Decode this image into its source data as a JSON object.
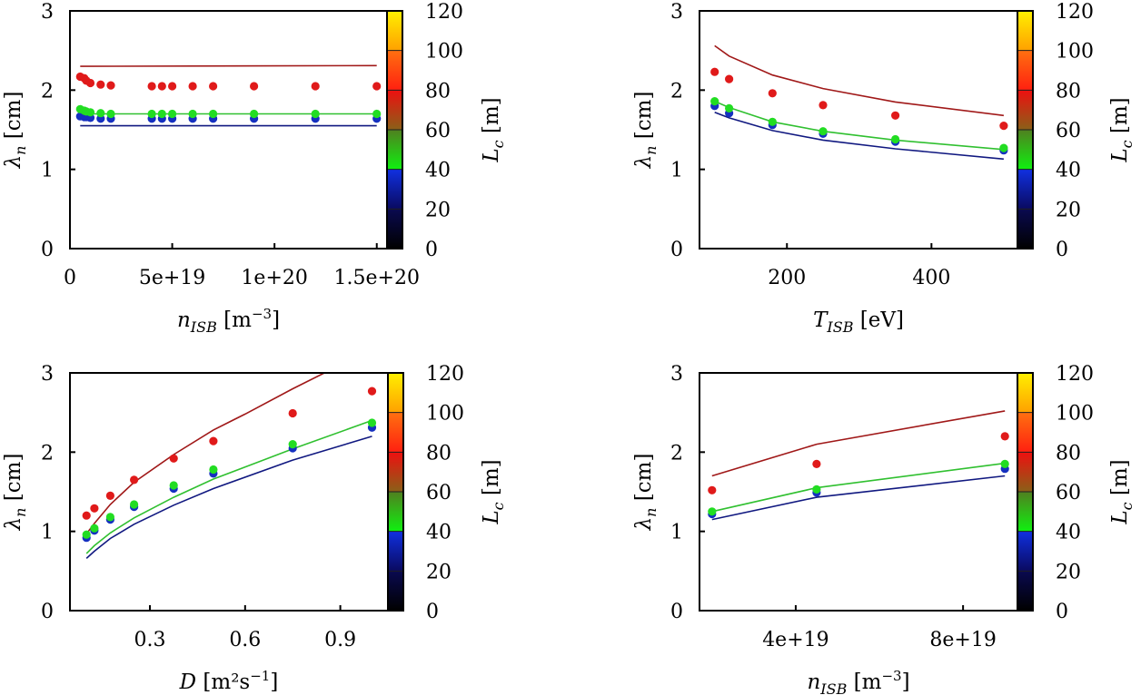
{
  "figure": {
    "y_axis_label": {
      "symbol": "λ",
      "subscript": "n",
      "unit": "[cm]"
    },
    "colorbar_label": {
      "symbol": "L",
      "subscript": "c",
      "unit": "[m]"
    },
    "colorbar": {
      "range": [
        0,
        120
      ],
      "ticks": [
        "0",
        "20",
        "40",
        "60",
        "80",
        "100",
        "120"
      ],
      "tick_values": [
        0,
        20,
        40,
        60,
        80,
        100,
        120
      ],
      "bands": [
        {
          "from": 0,
          "to": 20,
          "bottom": "#000000",
          "top": "#0a0a50"
        },
        {
          "from": 20,
          "to": 40,
          "bottom": "#0a0a60",
          "top": "#1030e0"
        },
        {
          "from": 40,
          "to": 60,
          "bottom": "#10f010",
          "top": "#508020"
        },
        {
          "from": 60,
          "to": 80,
          "bottom": "#8a6018",
          "top": "#ee1010"
        },
        {
          "from": 80,
          "to": 100,
          "bottom": "#ff2010",
          "top": "#ff7010"
        },
        {
          "from": 100,
          "to": 120,
          "bottom": "#ffa000",
          "top": "#fff000"
        }
      ]
    },
    "series_colors": {
      "red": "#e01a1a",
      "green": "#22dd22",
      "blue": "#1530c0",
      "red_line": "#a01818",
      "green_line": "#30c030",
      "blue_line": "#101880"
    }
  },
  "chart_data": [
    {
      "type": "scatter",
      "title": "",
      "xlabel": {
        "symbol": "n",
        "subscript": "ISB",
        "unit": "[m",
        "sup": "−3",
        "close": "]"
      },
      "ylabel": "λn [cm]",
      "xlim": [
        0,
        1.55e+20
      ],
      "ylim": [
        0,
        3
      ],
      "xticks": [
        0,
        5e+19,
        1e+20,
        1.5e+20
      ],
      "xtick_labels": [
        "0",
        "5e+19",
        "1e+20",
        "1.5e+20"
      ],
      "yticks": [
        0,
        1,
        2,
        3
      ],
      "ytick_labels": [
        "0",
        "1",
        "2",
        "3"
      ],
      "colorbar_label": "Lc [m]",
      "series": [
        {
          "name": "points-red",
          "kind": "points",
          "color": "red",
          "x": [
            5e+18,
            7e+18,
            8e+18,
            1e+19,
            1.5e+19,
            2e+19,
            4e+19,
            4.5e+19,
            5e+19,
            6e+19,
            7e+19,
            9e+19,
            1.2e+20,
            1.5e+20
          ],
          "y": [
            2.17,
            2.15,
            2.12,
            2.09,
            2.07,
            2.06,
            2.05,
            2.05,
            2.05,
            2.05,
            2.05,
            2.05,
            2.05,
            2.05
          ]
        },
        {
          "name": "points-green",
          "kind": "points",
          "color": "green",
          "x": [
            5e+18,
            7e+18,
            8e+18,
            1e+19,
            1.5e+19,
            2e+19,
            4e+19,
            4.5e+19,
            5e+19,
            6e+19,
            7e+19,
            9e+19,
            1.2e+20,
            1.5e+20
          ],
          "y": [
            1.76,
            1.74,
            1.73,
            1.72,
            1.71,
            1.7,
            1.7,
            1.7,
            1.7,
            1.7,
            1.7,
            1.7,
            1.7,
            1.7
          ]
        },
        {
          "name": "points-blue",
          "kind": "points",
          "color": "blue",
          "x": [
            5e+18,
            7e+18,
            8e+18,
            1e+19,
            1.5e+19,
            2e+19,
            4e+19,
            4.5e+19,
            5e+19,
            6e+19,
            7e+19,
            9e+19,
            1.2e+20,
            1.5e+20
          ],
          "y": [
            1.67,
            1.66,
            1.66,
            1.65,
            1.64,
            1.64,
            1.64,
            1.64,
            1.64,
            1.64,
            1.64,
            1.64,
            1.64,
            1.64
          ]
        },
        {
          "name": "line-red",
          "kind": "line",
          "color": "red_line",
          "x": [
            5e+18,
            1.5e+20
          ],
          "y": [
            2.3,
            2.31
          ]
        },
        {
          "name": "line-green",
          "kind": "line",
          "color": "green_line",
          "x": [
            5e+18,
            1.5e+20
          ],
          "y": [
            1.7,
            1.7
          ]
        },
        {
          "name": "line-blue",
          "kind": "line",
          "color": "blue_line",
          "x": [
            5e+18,
            1.5e+20
          ],
          "y": [
            1.55,
            1.55
          ]
        }
      ]
    },
    {
      "type": "scatter",
      "title": "",
      "xlabel": {
        "symbol": "T",
        "subscript": "ISB",
        "unit": "[eV]",
        "sup": "",
        "close": ""
      },
      "ylabel": "λn [cm]",
      "xlim": [
        79,
        519
      ],
      "ylim": [
        0,
        3
      ],
      "xticks": [
        200,
        400
      ],
      "xtick_labels": [
        "200",
        "400"
      ],
      "yticks": [
        0,
        1,
        2,
        3
      ],
      "ytick_labels": [
        "0",
        "1",
        "2",
        "3"
      ],
      "colorbar_label": "Lc [m]",
      "series": [
        {
          "name": "points-red",
          "kind": "points",
          "color": "red",
          "x": [
            100,
            120,
            180,
            250,
            350,
            500
          ],
          "y": [
            2.23,
            2.14,
            1.96,
            1.81,
            1.68,
            1.55
          ]
        },
        {
          "name": "points-green",
          "kind": "points",
          "color": "green",
          "x": [
            100,
            120,
            180,
            250,
            350,
            500
          ],
          "y": [
            1.86,
            1.77,
            1.6,
            1.48,
            1.38,
            1.27
          ]
        },
        {
          "name": "points-blue",
          "kind": "points",
          "color": "blue",
          "x": [
            100,
            120,
            180,
            250,
            350,
            500
          ],
          "y": [
            1.8,
            1.71,
            1.56,
            1.45,
            1.35,
            1.24
          ]
        },
        {
          "name": "line-red",
          "kind": "line",
          "color": "red_line",
          "x": [
            100,
            120,
            180,
            250,
            350,
            500
          ],
          "y": [
            2.56,
            2.43,
            2.19,
            2.02,
            1.85,
            1.68
          ]
        },
        {
          "name": "line-green",
          "kind": "line",
          "color": "green_line",
          "x": [
            100,
            120,
            180,
            250,
            350,
            500
          ],
          "y": [
            1.86,
            1.78,
            1.6,
            1.48,
            1.37,
            1.25
          ]
        },
        {
          "name": "line-blue",
          "kind": "line",
          "color": "blue_line",
          "x": [
            100,
            120,
            180,
            250,
            350,
            500
          ],
          "y": [
            1.72,
            1.65,
            1.49,
            1.37,
            1.26,
            1.13
          ]
        }
      ]
    },
    {
      "type": "scatter",
      "title": "",
      "xlabel": {
        "symbol": "D",
        "subscript": "",
        "unit": "[m²s",
        "sup": "−1",
        "close": "]"
      },
      "ylabel": "λn [cm]",
      "xlim": [
        0.048,
        1.05
      ],
      "ylim": [
        0,
        3
      ],
      "xticks": [
        0.3,
        0.6,
        0.9
      ],
      "xtick_labels": [
        "0.3",
        "0.6",
        "0.9"
      ],
      "yticks": [
        0,
        1,
        2,
        3
      ],
      "ytick_labels": [
        "0",
        "1",
        "2",
        "3"
      ],
      "colorbar_label": "Lc [m]",
      "series": [
        {
          "name": "points-red",
          "kind": "points",
          "color": "red",
          "x": [
            0.1,
            0.125,
            0.175,
            0.25,
            0.375,
            0.5,
            0.75,
            1.0
          ],
          "y": [
            1.2,
            1.29,
            1.45,
            1.65,
            1.92,
            2.14,
            2.49,
            2.77
          ]
        },
        {
          "name": "points-green",
          "kind": "points",
          "color": "green",
          "x": [
            0.1,
            0.125,
            0.175,
            0.25,
            0.375,
            0.5,
            0.75,
            1.0
          ],
          "y": [
            0.96,
            1.04,
            1.18,
            1.34,
            1.58,
            1.78,
            2.1,
            2.37
          ]
        },
        {
          "name": "points-blue",
          "kind": "points",
          "color": "blue",
          "x": [
            0.1,
            0.125,
            0.175,
            0.25,
            0.375,
            0.5,
            0.75,
            1.0
          ],
          "y": [
            0.92,
            1.01,
            1.15,
            1.31,
            1.54,
            1.73,
            2.05,
            2.31
          ]
        },
        {
          "name": "line-red",
          "kind": "line",
          "color": "red_line",
          "x": [
            0.1,
            0.125,
            0.175,
            0.25,
            0.375,
            0.5,
            0.6,
            0.75,
            0.85
          ],
          "y": [
            0.97,
            1.1,
            1.34,
            1.62,
            1.97,
            2.28,
            2.48,
            2.8,
            3.0
          ]
        },
        {
          "name": "line-green",
          "kind": "line",
          "color": "green_line",
          "x": [
            0.1,
            0.125,
            0.175,
            0.25,
            0.375,
            0.5,
            0.75,
            1.0
          ],
          "y": [
            0.72,
            0.82,
            0.98,
            1.17,
            1.43,
            1.66,
            2.04,
            2.4
          ]
        },
        {
          "name": "line-blue",
          "kind": "line",
          "color": "blue_line",
          "x": [
            0.1,
            0.125,
            0.175,
            0.25,
            0.375,
            0.5,
            0.75,
            1.0
          ],
          "y": [
            0.66,
            0.75,
            0.91,
            1.09,
            1.33,
            1.54,
            1.9,
            2.2
          ]
        }
      ]
    },
    {
      "type": "scatter",
      "title": "",
      "xlabel": {
        "symbol": "n",
        "subscript": "ISB",
        "unit": "[m",
        "sup": "−3",
        "close": "]"
      },
      "ylabel": "λn [cm]",
      "xlim": [
        1.7e+19,
        9.3e+19
      ],
      "ylim": [
        0,
        3
      ],
      "xticks": [
        4e+19,
        8e+19
      ],
      "xtick_labels": [
        "4e+19",
        "8e+19"
      ],
      "yticks": [
        0,
        1,
        2,
        3
      ],
      "ytick_labels": [
        "0",
        "1",
        "2",
        "3"
      ],
      "colorbar_label": "Lc [m]",
      "series": [
        {
          "name": "points-red",
          "kind": "points",
          "color": "red",
          "x": [
            2e+19,
            4.5e+19,
            9e+19
          ],
          "y": [
            1.52,
            1.85,
            2.2
          ]
        },
        {
          "name": "points-green",
          "kind": "points",
          "color": "green",
          "x": [
            2e+19,
            4.5e+19,
            9e+19
          ],
          "y": [
            1.25,
            1.53,
            1.85
          ]
        },
        {
          "name": "points-blue",
          "kind": "points",
          "color": "blue",
          "x": [
            2e+19,
            4.5e+19,
            9e+19
          ],
          "y": [
            1.22,
            1.49,
            1.79
          ]
        },
        {
          "name": "line-red",
          "kind": "line",
          "color": "red_line",
          "x": [
            2e+19,
            4.5e+19,
            9e+19
          ],
          "y": [
            1.7,
            2.1,
            2.52
          ]
        },
        {
          "name": "line-green",
          "kind": "line",
          "color": "green_line",
          "x": [
            2e+19,
            4.5e+19,
            9e+19
          ],
          "y": [
            1.25,
            1.55,
            1.86
          ]
        },
        {
          "name": "line-blue",
          "kind": "line",
          "color": "blue_line",
          "x": [
            2e+19,
            4.5e+19,
            9e+19
          ],
          "y": [
            1.15,
            1.43,
            1.7
          ]
        }
      ]
    }
  ]
}
